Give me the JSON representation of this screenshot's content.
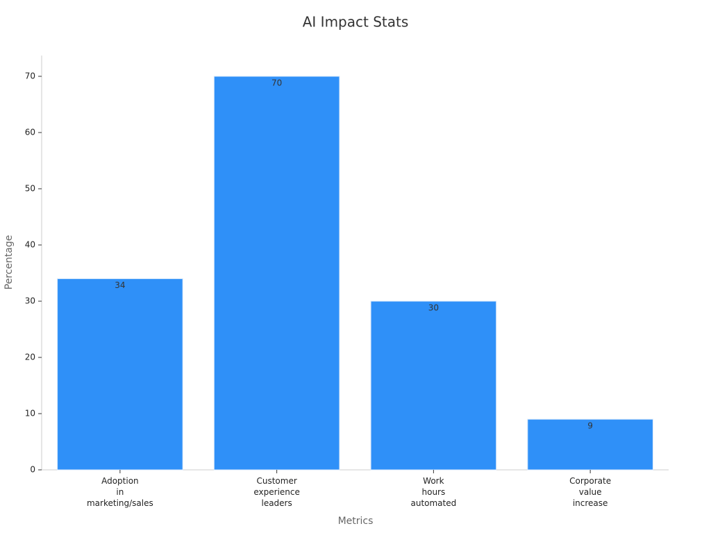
{
  "chart_data": {
    "type": "bar",
    "title": "AI Impact Stats",
    "xlabel": "Metrics",
    "ylabel": "Percentage",
    "categories": [
      "Adoption\nin\nmarketing/sales",
      "Customer\nexperience\nleaders",
      "Work\nhours\nautomated",
      "Corporate\nvalue\nincrease"
    ],
    "values": [
      34,
      70,
      30,
      9
    ],
    "color": "#2f90f8",
    "ylim": [
      0,
      73.7
    ],
    "yticks": [
      0,
      10,
      20,
      30,
      40,
      50,
      60,
      70
    ],
    "grid": false
  }
}
